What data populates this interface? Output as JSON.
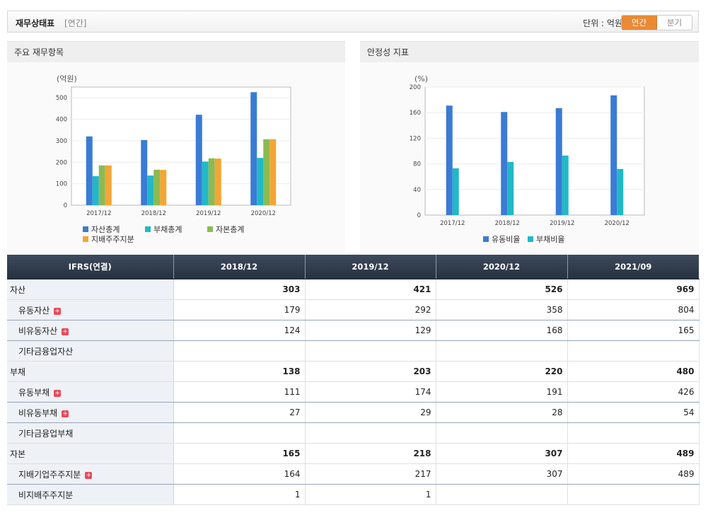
{
  "header": {
    "title": "재무상태표",
    "subtitle": "[연간]",
    "unit_label": "단위 : 억원",
    "toggle": {
      "annual": "연간",
      "quarterly": "분기"
    }
  },
  "panels": {
    "left_title": "주요 재무항목",
    "right_title": "안정성 지표"
  },
  "chart_data": [
    {
      "type": "bar",
      "unit": "(억원)",
      "categories": [
        "2017/12",
        "2018/12",
        "2019/12",
        "2020/12"
      ],
      "ylim": [
        0,
        550
      ],
      "yticks": [
        "0",
        "100",
        "200",
        "300",
        "400",
        "500"
      ],
      "series": [
        {
          "name": "자산총계",
          "color": "#3a7bd5",
          "values": [
            320,
            303,
            421,
            526
          ]
        },
        {
          "name": "부채총계",
          "color": "#21b8c8",
          "values": [
            135,
            138,
            203,
            220
          ]
        },
        {
          "name": "자본총계",
          "color": "#8cba52",
          "values": [
            185,
            165,
            218,
            307
          ]
        },
        {
          "name": "지배주주지분",
          "color": "#f4a535",
          "values": [
            185,
            164,
            217,
            307
          ]
        }
      ],
      "legend_position": "bottom-left"
    },
    {
      "type": "bar",
      "unit": "(%)",
      "categories": [
        "2017/12",
        "2018/12",
        "2019/12",
        "2020/12"
      ],
      "ylim": [
        0,
        200
      ],
      "yticks": [
        "0",
        "40",
        "80",
        "120",
        "160",
        "200"
      ],
      "series": [
        {
          "name": "유동비율",
          "color": "#3a7bd5",
          "values": [
            171,
            161,
            167,
            187
          ]
        },
        {
          "name": "부채비율",
          "color": "#21b8c8",
          "values": [
            73,
            83,
            93,
            72
          ]
        }
      ],
      "legend_position": "bottom-center"
    }
  ],
  "table": {
    "columns": [
      "IFRS(연결)",
      "2018/12",
      "2019/12",
      "2020/12",
      "2021/09"
    ],
    "rows": [
      {
        "label": "자산",
        "values": [
          "303",
          "421",
          "526",
          "969"
        ],
        "bold": true
      },
      {
        "label": "유동자산",
        "values": [
          "179",
          "292",
          "358",
          "804"
        ],
        "expand": true
      },
      {
        "label": "비유동자산",
        "values": [
          "124",
          "129",
          "168",
          "165"
        ],
        "expand": true
      },
      {
        "label": "기타금융업자산",
        "values": [
          "",
          "",
          "",
          ""
        ]
      },
      {
        "label": "부채",
        "values": [
          "138",
          "203",
          "220",
          "480"
        ],
        "bold": true
      },
      {
        "label": "유동부채",
        "values": [
          "111",
          "174",
          "191",
          "426"
        ],
        "expand": true
      },
      {
        "label": "비유동부채",
        "values": [
          "27",
          "29",
          "28",
          "54"
        ],
        "expand": true
      },
      {
        "label": "기타금융업부채",
        "values": [
          "",
          "",
          "",
          ""
        ]
      },
      {
        "label": "자본",
        "values": [
          "165",
          "218",
          "307",
          "489"
        ],
        "bold": true
      },
      {
        "label": "지배기업주주지분",
        "values": [
          "164",
          "217",
          "307",
          "489"
        ],
        "expand": true
      },
      {
        "label": "비지배주주지분",
        "values": [
          "1",
          "1",
          "",
          ""
        ]
      }
    ]
  }
}
